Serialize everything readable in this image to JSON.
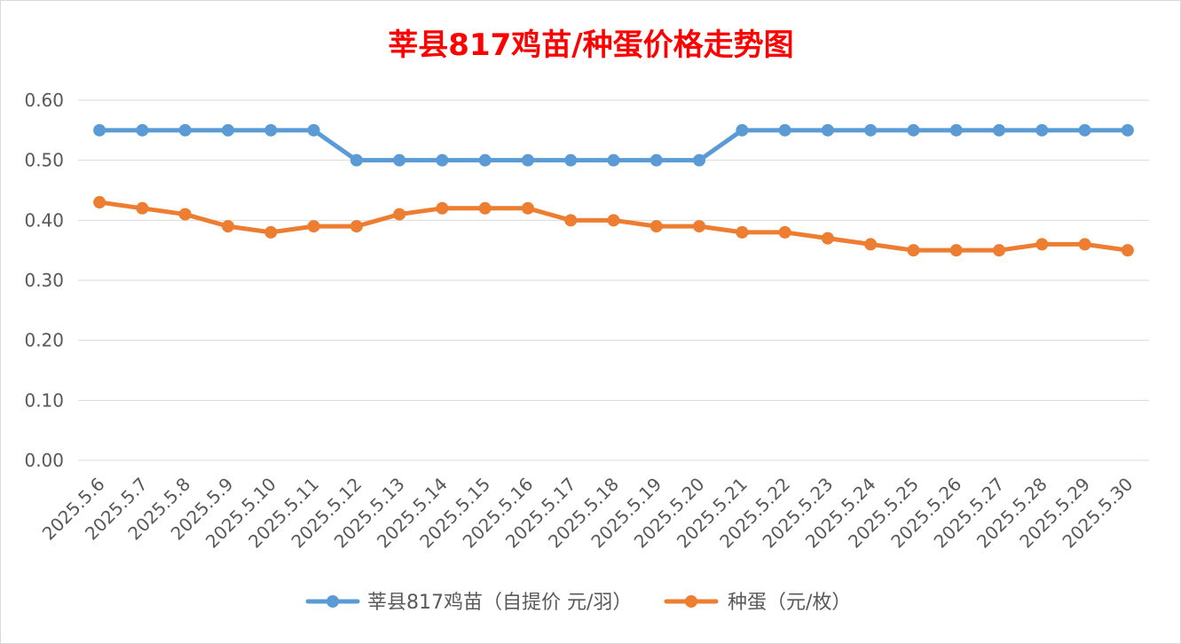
{
  "chart_data": {
    "type": "line",
    "title": "莘县817鸡苗/种蛋价格走势图",
    "categories": [
      "2025.5.6",
      "2025.5.7",
      "2025.5.8",
      "2025.5.9",
      "2025.5.10",
      "2025.5.11",
      "2025.5.12",
      "2025.5.13",
      "2025.5.14",
      "2025.5.15",
      "2025.5.16",
      "2025.5.17",
      "2025.5.18",
      "2025.5.19",
      "2025.5.20",
      "2025.5.21",
      "2025.5.22",
      "2025.5.23",
      "2025.5.24",
      "2025.5.25",
      "2025.5.26",
      "2025.5.27",
      "2025.5.28",
      "2025.5.29",
      "2025.5.30"
    ],
    "series": [
      {
        "name": "莘县817鸡苗（自提价 元/羽）",
        "color": "#5b9bd5",
        "values": [
          0.55,
          0.55,
          0.55,
          0.55,
          0.55,
          0.55,
          0.5,
          0.5,
          0.5,
          0.5,
          0.5,
          0.5,
          0.5,
          0.5,
          0.5,
          0.55,
          0.55,
          0.55,
          0.55,
          0.55,
          0.55,
          0.55,
          0.55,
          0.55,
          0.55
        ]
      },
      {
        "name": "种蛋（元/枚）",
        "color": "#ed7d31",
        "values": [
          0.43,
          0.42,
          0.41,
          0.39,
          0.38,
          0.39,
          0.39,
          0.41,
          0.42,
          0.42,
          0.42,
          0.4,
          0.4,
          0.39,
          0.39,
          0.38,
          0.38,
          0.37,
          0.36,
          0.35,
          0.35,
          0.35,
          0.36,
          0.36,
          0.35
        ]
      }
    ],
    "yticks": [
      "0.00",
      "0.10",
      "0.20",
      "0.30",
      "0.40",
      "0.50",
      "0.60"
    ],
    "ylim": [
      0,
      0.6
    ],
    "grid": true,
    "legend": "bottom",
    "title_color": "#ff0000",
    "grid_color": "#d9d9d9",
    "axis_text_color": "#595959"
  }
}
